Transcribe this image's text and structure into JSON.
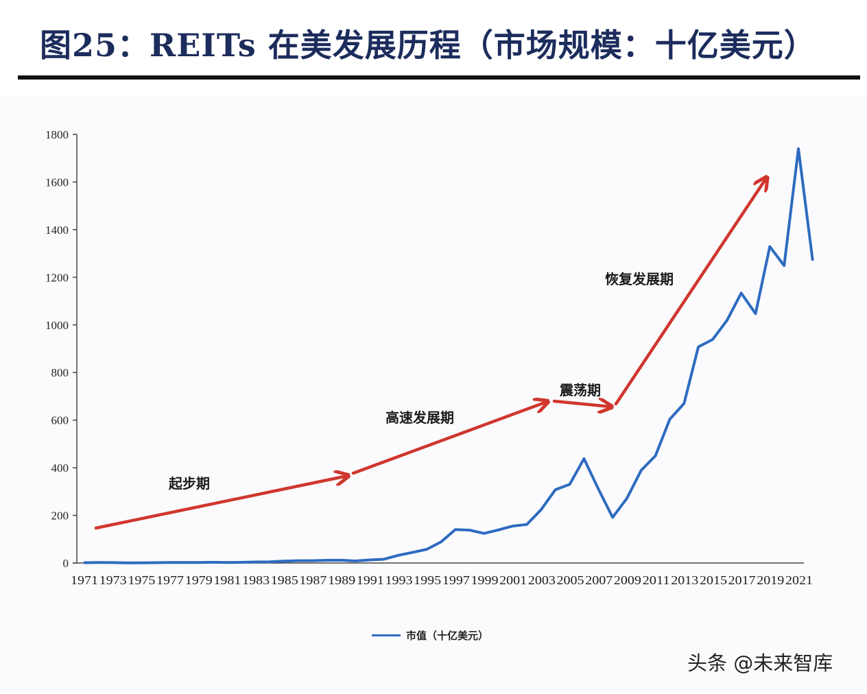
{
  "page": {
    "title": "图25：REITs 在美发展历程（市场规模：十亿美元）",
    "watermark": "头条 @未来智库"
  },
  "legend": {
    "series_label": "市值（十亿美元）",
    "color": "#2e6bc0"
  },
  "annotations": [
    {
      "label": "起步期",
      "arrow_color": "#d0362e"
    },
    {
      "label": "高速发展期",
      "arrow_color": "#d0362e"
    },
    {
      "label": "震荡期",
      "arrow_color": "#d0362e"
    },
    {
      "label": "恢复发展期",
      "arrow_color": "#d0362e"
    }
  ],
  "colors": {
    "title": "#1c2c5c",
    "line": "#2e6bc0",
    "arrow": "#d0362e",
    "axis": "#444444"
  },
  "chart_data": {
    "type": "line",
    "title": "REITs 在美发展历程（市场规模：十亿美元）",
    "xlabel": "",
    "ylabel": "",
    "ylim": [
      0,
      1800
    ],
    "yticks": [
      0,
      200,
      400,
      600,
      800,
      1000,
      1200,
      1400,
      1600,
      1800
    ],
    "xtick_labels": [
      "1971",
      "1973",
      "1975",
      "1977",
      "1979",
      "1981",
      "1983",
      "1985",
      "1987",
      "1989",
      "1991",
      "1993",
      "1995",
      "1997",
      "1999",
      "2001",
      "2003",
      "2005",
      "2007",
      "2009",
      "2011",
      "2013",
      "2015",
      "2017",
      "2019",
      "2021"
    ],
    "grid": false,
    "legend_position": "bottom",
    "x": [
      1971,
      1972,
      1973,
      1974,
      1975,
      1976,
      1977,
      1978,
      1979,
      1980,
      1981,
      1982,
      1983,
      1984,
      1985,
      1986,
      1987,
      1988,
      1989,
      1990,
      1991,
      1992,
      1993,
      1994,
      1995,
      1996,
      1997,
      1998,
      1999,
      2000,
      2001,
      2002,
      2003,
      2004,
      2005,
      2006,
      2007,
      2008,
      2009,
      2010,
      2011,
      2012,
      2013,
      2014,
      2015,
      2016,
      2017,
      2018,
      2019,
      2020,
      2021,
      2022
    ],
    "series": [
      {
        "name": "市值（十亿美元）",
        "values": [
          1.5,
          1.9,
          1.8,
          0.7,
          0.9,
          1.3,
          1.9,
          2.0,
          2.2,
          3.3,
          2.4,
          3.0,
          4.3,
          5.1,
          7.7,
          9.9,
          9.7,
          11.4,
          11.7,
          8.7,
          13.0,
          15.9,
          32.2,
          44.3,
          57.5,
          88.8,
          140.5,
          138.3,
          124.3,
          138.7,
          154.9,
          161.9,
          224.2,
          307.9,
          330.7,
          438.1,
          312.0,
          191.7,
          271.2,
          389.3,
          450.5,
          603.4,
          670.3,
          907.4,
          938.9,
          1018.7,
          1133.7,
          1047.6,
          1328.8,
          1249.2,
          1739.7,
          1270.0
        ]
      }
    ],
    "annotations": [
      {
        "text": "起步期",
        "from": [
          1971,
          150
        ],
        "to": [
          1990,
          370
        ]
      },
      {
        "text": "高速发展期",
        "from": [
          1990,
          375
        ],
        "to": [
          2005,
          680
        ]
      },
      {
        "text": "震荡期",
        "from": [
          2005,
          680
        ],
        "to": [
          2009,
          660
        ]
      },
      {
        "text": "恢复发展期",
        "from": [
          2009,
          665
        ],
        "to": [
          2020,
          1620
        ]
      }
    ]
  }
}
